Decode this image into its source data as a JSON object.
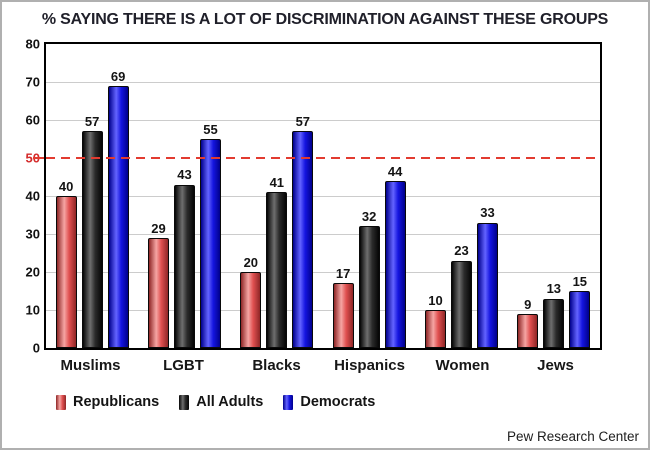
{
  "title": "% SAYING THERE IS A LOT OF DISCRIMINATION AGAINST THESE GROUPS",
  "source": "Pew Research Center",
  "chart_data": {
    "type": "bar",
    "title": "% SAYING THERE IS A LOT OF DISCRIMINATION AGAINST THESE GROUPS",
    "categories": [
      "Muslims",
      "LGBT",
      "Blacks",
      "Hispanics",
      "Women",
      "Jews"
    ],
    "series": [
      {
        "name": "Republicans",
        "color": "#e05050",
        "color_dark": "#8f2626",
        "color_light": "#f5a5a3",
        "values": [
          40,
          29,
          20,
          17,
          10,
          9
        ]
      },
      {
        "name": "All Adults",
        "color": "#2b2b2b",
        "color_dark": "#050505",
        "color_light": "#6e6e6e",
        "values": [
          57,
          43,
          41,
          32,
          23,
          13
        ]
      },
      {
        "name": "Democrats",
        "color": "#1515e0",
        "color_dark": "#00008c",
        "color_light": "#6363ff",
        "values": [
          69,
          55,
          57,
          44,
          33,
          15
        ]
      }
    ],
    "ylim": [
      0,
      80
    ],
    "yticks": [
      0,
      10,
      20,
      30,
      40,
      50,
      60,
      70,
      80
    ],
    "reference_line": {
      "value": 50,
      "color": "#e23b30",
      "style": "dashed"
    },
    "grid": true,
    "legend_position": "bottom",
    "grid_color": "#cccccc",
    "tick_highlight_color": "#d42a2a",
    "source": "Pew Research Center"
  }
}
